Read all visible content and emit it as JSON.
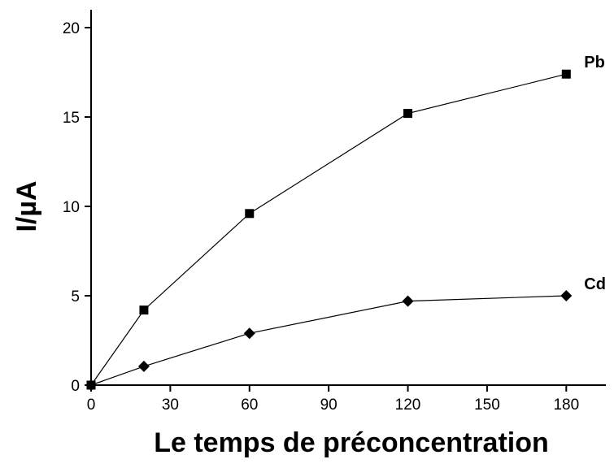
{
  "chart_data": {
    "type": "line",
    "x_label": "Le temps de préconcentration",
    "y_label": "I/µA",
    "x": [
      0,
      20,
      60,
      120,
      180
    ],
    "series": [
      {
        "name": "Pb",
        "color": "#000000",
        "marker": "square",
        "values": [
          0,
          4.2,
          9.6,
          15.2,
          17.4
        ]
      },
      {
        "name": "Cd",
        "color": "#000000",
        "marker": "diamond",
        "values": [
          0,
          1.05,
          2.9,
          4.7,
          5.0
        ]
      }
    ],
    "xlim": [
      0,
      195
    ],
    "xticks": [
      0,
      30,
      60,
      90,
      120,
      150,
      180
    ],
    "ylim": [
      0,
      21
    ],
    "yticks": [
      0,
      5,
      10,
      15,
      20
    ],
    "grid": false
  }
}
